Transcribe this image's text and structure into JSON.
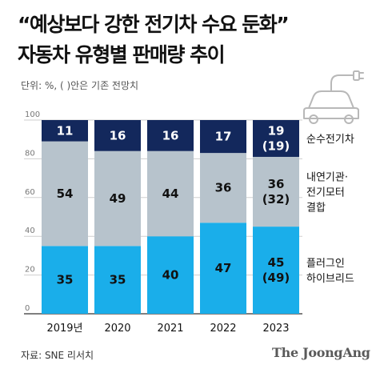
{
  "title": "“예상보다 강한 전기차 수요 둔화”",
  "subtitle": "자동차 유형별 판매량 추이",
  "unit_note": "단위: %, ( )안은 기존 전망치",
  "source": "자료: SNE 리서치",
  "brand": "The JoongAng",
  "chart_data": {
    "type": "bar",
    "stacked": true,
    "categories": [
      "2019년",
      "2020",
      "2021",
      "2022",
      "2023"
    ],
    "ylim": [
      0,
      100
    ],
    "yticks": [
      0,
      20,
      40,
      60,
      80,
      100
    ],
    "grid": true,
    "legend_position": "right",
    "series": [
      {
        "name": "플러그인\n하이브리드",
        "color": "#1aaeea",
        "values": [
          35,
          35,
          40,
          47,
          45
        ],
        "labels": [
          "35",
          "35",
          "40",
          "47",
          "45\n(49)"
        ]
      },
      {
        "name": "내연기관·\n전기모터\n결합",
        "color": "#b7c3cc",
        "values": [
          54,
          49,
          44,
          36,
          36
        ],
        "labels": [
          "54",
          "49",
          "44",
          "36",
          "36\n(32)"
        ]
      },
      {
        "name": "순수전기차",
        "color": "#13285c",
        "values": [
          11,
          16,
          16,
          17,
          19
        ],
        "labels": [
          "11",
          "16",
          "16",
          "17",
          "19\n(19)"
        ]
      }
    ]
  }
}
